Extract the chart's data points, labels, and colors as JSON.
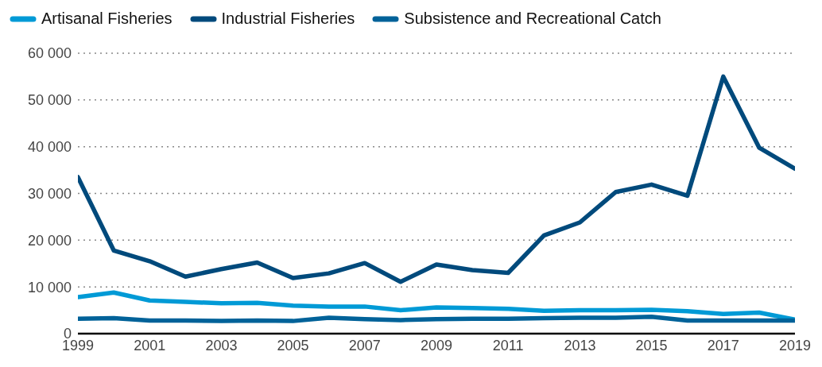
{
  "chart_data": {
    "type": "line",
    "x": [
      1999,
      2000,
      2001,
      2002,
      2003,
      2004,
      2005,
      2006,
      2007,
      2008,
      2009,
      2010,
      2011,
      2012,
      2013,
      2014,
      2015,
      2016,
      2017,
      2018,
      2019
    ],
    "series": [
      {
        "name": "Artisanal Fisheries",
        "color": "#009ad6",
        "values": [
          7800,
          8800,
          7100,
          6800,
          6500,
          6600,
          6000,
          5800,
          5800,
          5000,
          5600,
          5500,
          5300,
          4900,
          5000,
          5000,
          5100,
          4800,
          4200,
          4500,
          3000
        ]
      },
      {
        "name": "Industrial Fisheries",
        "color": "#004a7c",
        "values": [
          33500,
          17800,
          15500,
          12200,
          13800,
          15200,
          11900,
          12900,
          15100,
          11100,
          14800,
          13600,
          13000,
          21000,
          23800,
          30300,
          31900,
          29500,
          55000,
          39800,
          35300
        ]
      },
      {
        "name": "Subsistence and Recreational Catch",
        "color": "#006299",
        "values": [
          3200,
          3300,
          2800,
          2800,
          2700,
          2800,
          2700,
          3400,
          3100,
          2900,
          3100,
          3200,
          3200,
          3300,
          3400,
          3400,
          3600,
          2800,
          2800,
          2800,
          2800
        ]
      }
    ],
    "xlim": [
      1999,
      2019
    ],
    "xticks": [
      1999,
      2001,
      2003,
      2005,
      2007,
      2009,
      2011,
      2013,
      2015,
      2017,
      2019
    ],
    "ylim": [
      0,
      60000
    ],
    "yticks": [
      {
        "value": 0,
        "label": "0"
      },
      {
        "value": 10000,
        "label": "10 000"
      },
      {
        "value": 20000,
        "label": "20 000"
      },
      {
        "value": 30000,
        "label": "30 000"
      },
      {
        "value": 40000,
        "label": "40 000"
      },
      {
        "value": 50000,
        "label": "50 000"
      },
      {
        "value": 60000,
        "label": "60 000"
      }
    ],
    "grid": "y",
    "legend": "top left",
    "marker": "none",
    "line_style": "solid"
  }
}
